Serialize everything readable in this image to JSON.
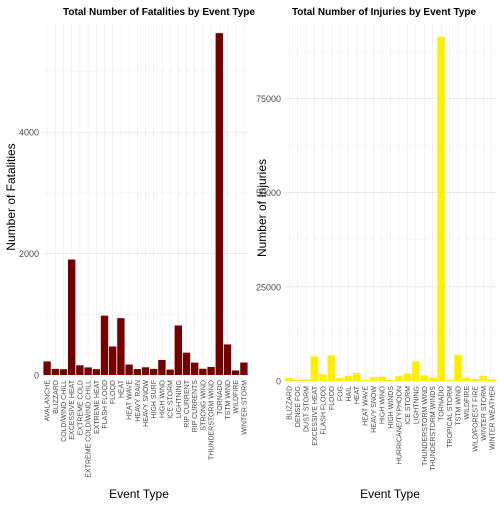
{
  "chart_data": [
    {
      "type": "bar",
      "title": "Total Number of Fatalities by Event Type",
      "xlabel": "Event Type",
      "ylabel": "Number of Fatalities",
      "ylim": [
        0,
        5800
      ],
      "yticks": [
        0,
        2000,
        4000
      ],
      "bar_color": "#750000",
      "grid": true,
      "categories": [
        "AVALANCHE",
        "BLIZZARD",
        "COLD/WIND CHILL",
        "EXCESSIVE HEAT",
        "EXTREME COLD",
        "EXTREME COLD/WIND CHILL",
        "EXTREME HEAT",
        "FLASH FLOOD",
        "FLOOD",
        "HEAT",
        "HEAT WAVE",
        "HEAVY RAIN",
        "HEAVY SNOW",
        "HIGH SURF",
        "HIGH WIND",
        "ICE STORM",
        "LIGHTNING",
        "RIP CURRENT",
        "RIP CURRENTS",
        "STRONG WIND",
        "THUNDERSTORM WIND",
        "TORNADO",
        "TSTM WIND",
        "WILDFIRE",
        "WINTER STORM"
      ],
      "values": [
        224,
        101,
        95,
        1903,
        160,
        125,
        96,
        978,
        470,
        937,
        172,
        98,
        127,
        101,
        248,
        89,
        816,
        368,
        204,
        103,
        133,
        5633,
        504,
        75,
        206
      ]
    },
    {
      "type": "bar",
      "title": "Total Number of Injuries by Event Type",
      "xlabel": "Event Type",
      "ylabel": "Number of Injuries",
      "ylim": [
        0,
        95000
      ],
      "yticks": [
        0,
        25000,
        50000,
        75000
      ],
      "bar_color": "#ffee00",
      "grid": true,
      "categories": [
        "BLIZZARD",
        "DENSE FOG",
        "DUST STORM",
        "EXCESSIVE HEAT",
        "FLASH FLOOD",
        "FLOOD",
        "FOG",
        "HAIL",
        "HEAT",
        "HEAT WAVE",
        "HEAVY SNOW",
        "HIGH WIND",
        "HIGH WINDS",
        "HURRICANE/TYPHOON",
        "ICE STORM",
        "LIGHTNING",
        "THUNDERSTORM WIND",
        "THUNDERSTORM WINDS",
        "TORNADO",
        "TROPICAL STORM",
        "TSTM WIND",
        "WILDFIRE",
        "WILD/FOREST FIRE",
        "WINTER STORM",
        "WINTER WEATHER"
      ],
      "values": [
        805,
        342,
        440,
        6525,
        1777,
        6789,
        734,
        1361,
        2100,
        309,
        1021,
        1137,
        302,
        1275,
        1975,
        5230,
        1488,
        908,
        91346,
        340,
        6957,
        911,
        545,
        1321,
        398
      ]
    }
  ]
}
